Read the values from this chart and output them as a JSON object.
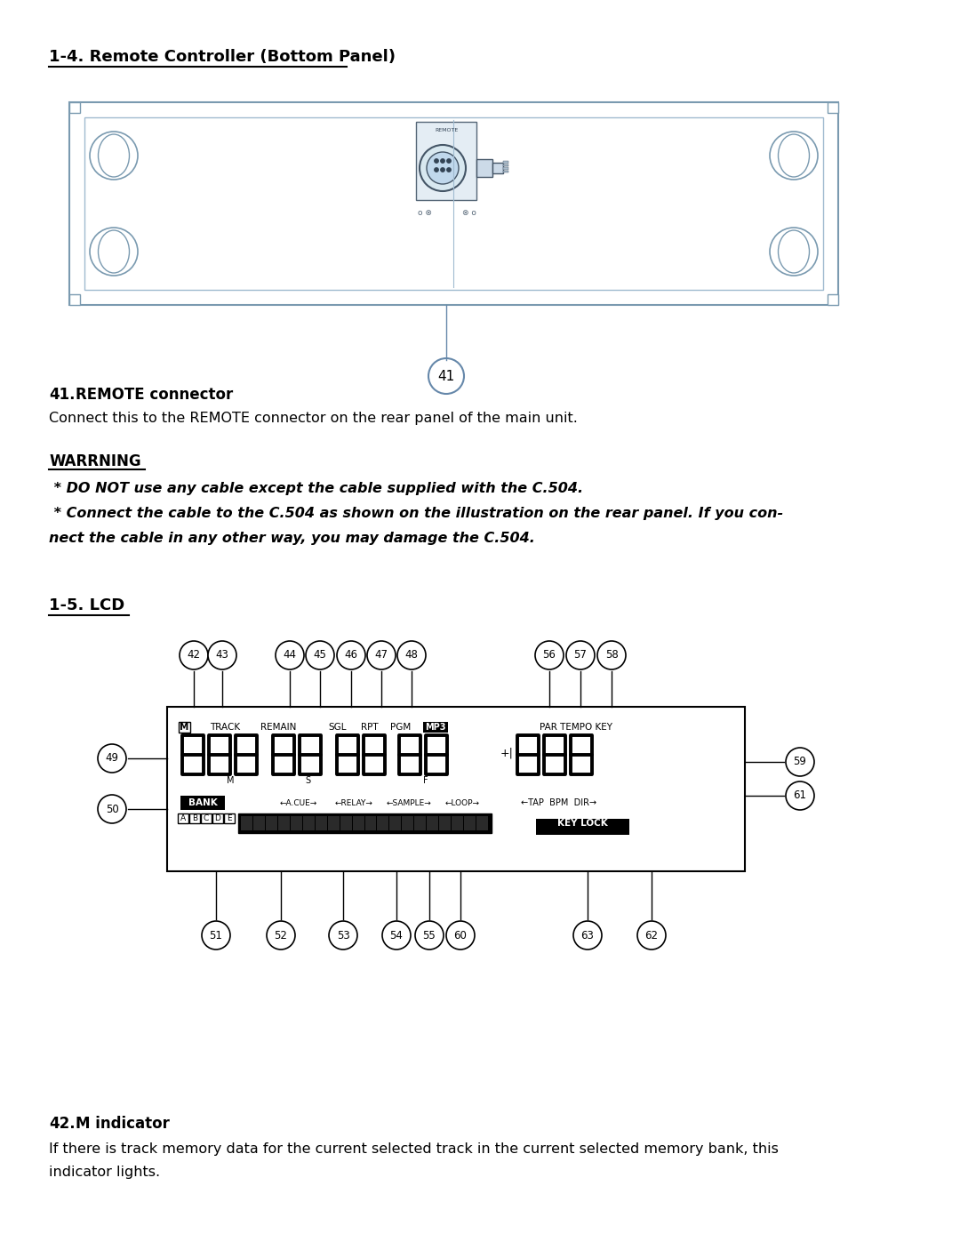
{
  "title_section1": "1-4. Remote Controller (Bottom Panel)",
  "title_section2": "1-5. LCD",
  "remote_connector_title_num": "41.",
  "remote_connector_title_rest": " REMOTE connector",
  "remote_connector_desc": "Connect this to the REMOTE connector on the rear panel of the main unit.",
  "warning_title": "WARRNING",
  "warning_line1": " * DO NOT use any cable except the cable supplied with the C.504.",
  "warning_line2": " * Connect the cable to the C.504 as shown on the illustration on the rear panel. If you con-",
  "warning_line3": "nect the cable in any other way, you may damage the C.504.",
  "m_indicator_title_num": "42.",
  "m_indicator_title_rest": " M indicator",
  "m_indicator_desc1": "If there is track memory data for the current selected track in the current selected memory bank, this",
  "m_indicator_desc2": "indicator lights.",
  "bg_color": "#ffffff",
  "text_color": "#000000"
}
